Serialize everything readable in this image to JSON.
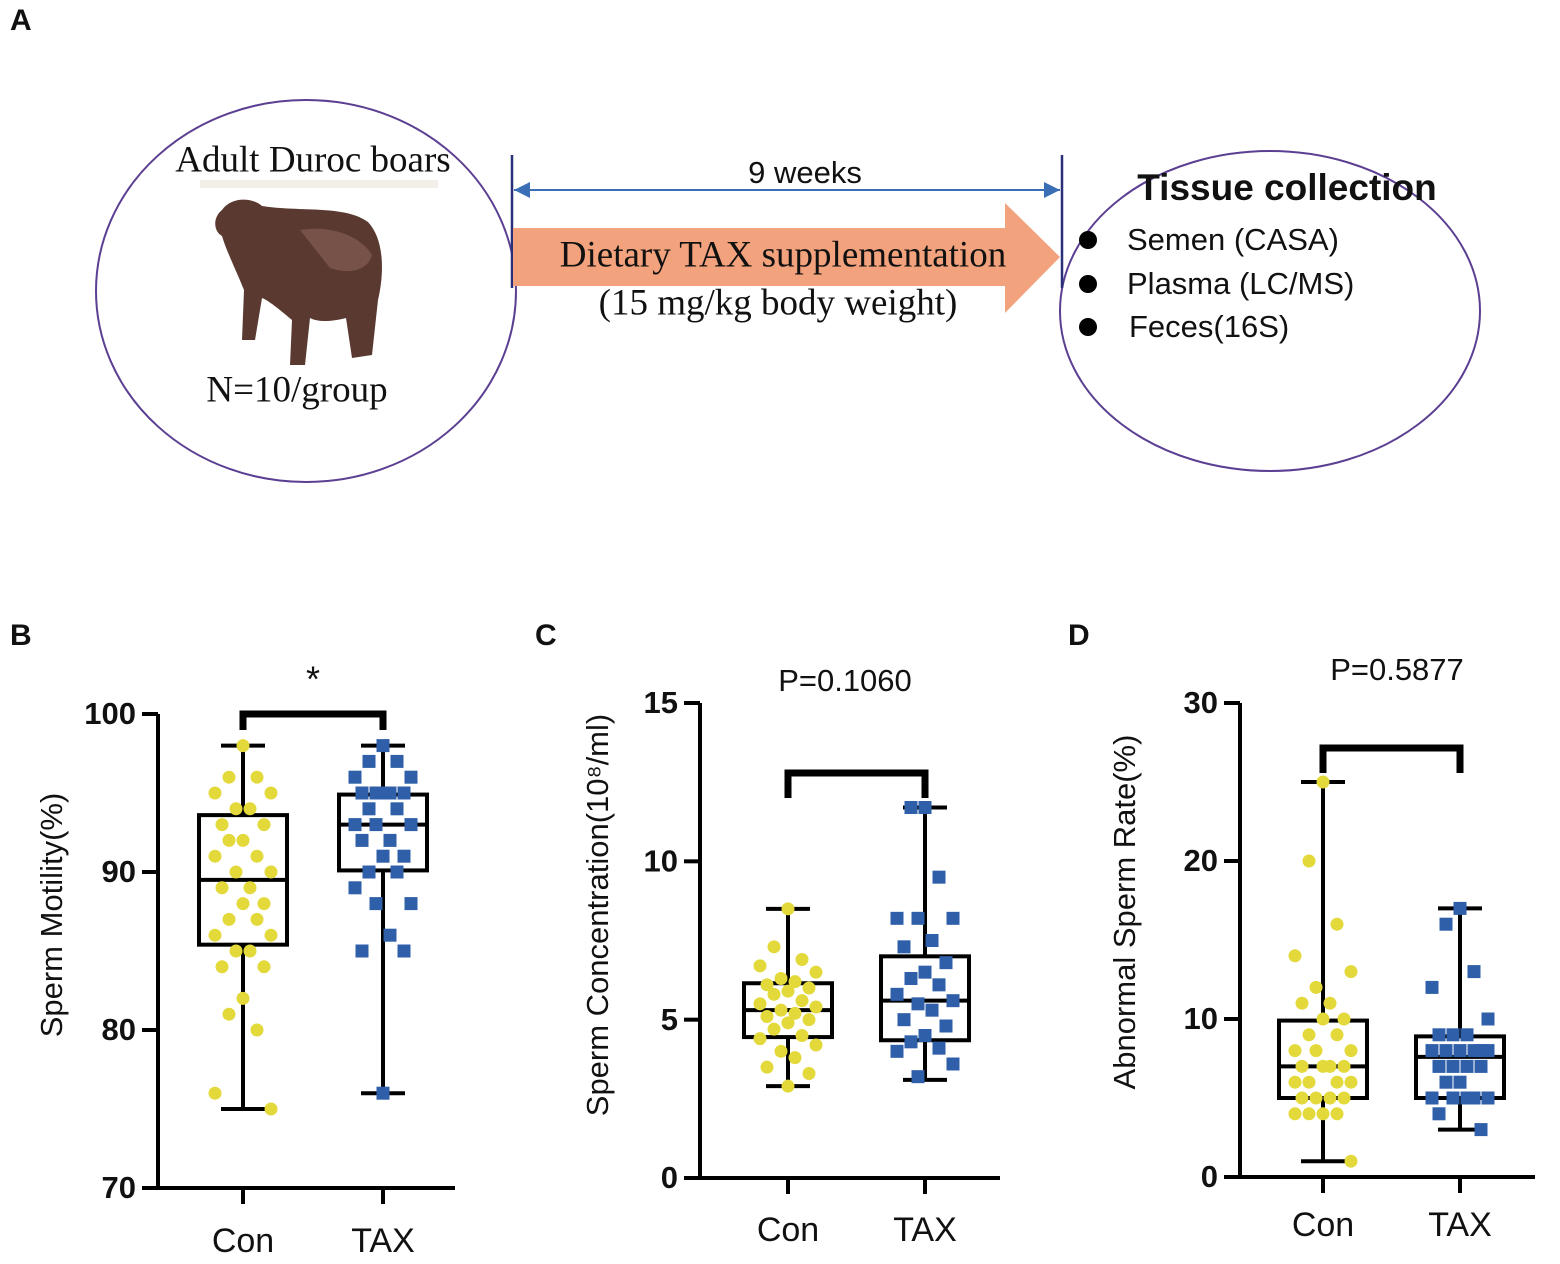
{
  "diagram": {
    "label": "A",
    "left": {
      "title": "Adult Duroc boars",
      "count": "N=10/group"
    },
    "duration": "9 weeks",
    "treatment": "Dietary TAX supplementation",
    "dose": "(15 mg/kg body weight)",
    "right": {
      "title": "Tissue collection",
      "items": [
        "Semen (CASA)",
        "Plasma (LC/MS)",
        "Feces(16S)"
      ]
    }
  },
  "chart_data": [
    {
      "type": "box",
      "label": "B",
      "y_label": "Sperm Motility(%)",
      "annotation": "*",
      "categories": [
        "Con",
        "TAX"
      ],
      "ylim": [
        70,
        100
      ],
      "yticks": [
        70,
        80,
        90,
        100
      ],
      "boxes": [
        {
          "color": "#e3d93b",
          "marker": "circle",
          "min": 75,
          "q1": 85.4,
          "median": 89.5,
          "q3": 93.6,
          "max": 98,
          "points": [
            98,
            96,
            96,
            95,
            95,
            94,
            94,
            93,
            93,
            92,
            92,
            91,
            91,
            90,
            90,
            89,
            89,
            88,
            88,
            87,
            87,
            86,
            86,
            85,
            85,
            84,
            84,
            82,
            81,
            80,
            76,
            75
          ]
        },
        {
          "color": "#2f5fa8",
          "marker": "square",
          "min": 76,
          "q1": 90.1,
          "median": 93,
          "q3": 94.9,
          "max": 98,
          "points": [
            98,
            97,
            97,
            96,
            96,
            95,
            95,
            95,
            95,
            95,
            94,
            94,
            93,
            93,
            93,
            92,
            92,
            91,
            91,
            90,
            90,
            89,
            88,
            88,
            86,
            85,
            85,
            76
          ]
        }
      ]
    },
    {
      "type": "box",
      "label": "C",
      "y_label": "Sperm Concentration(10⁸/ml)",
      "annotation": "P=0.1060",
      "categories": [
        "Con",
        "TAX"
      ],
      "ylim": [
        0,
        15
      ],
      "yticks": [
        0,
        5,
        10,
        15
      ],
      "boxes": [
        {
          "color": "#e3d93b",
          "marker": "circle",
          "min": 2.9,
          "q1": 4.45,
          "median": 5.3,
          "q3": 6.15,
          "max": 8.5,
          "points": [
            8.5,
            7.3,
            6.9,
            6.7,
            6.5,
            6.3,
            6.2,
            6.1,
            6.0,
            5.9,
            5.8,
            5.6,
            5.5,
            5.4,
            5.3,
            5.2,
            5.1,
            5.0,
            4.9,
            4.7,
            4.5,
            4.4,
            4.2,
            4.0,
            3.8,
            3.5,
            3.3,
            2.9
          ]
        },
        {
          "color": "#2f5fa8",
          "marker": "square",
          "min": 3.1,
          "q1": 4.35,
          "median": 5.6,
          "q3": 7.0,
          "max": 11.7,
          "points": [
            11.7,
            11.7,
            9.5,
            8.2,
            8.2,
            8.2,
            7.5,
            7.3,
            6.8,
            6.5,
            6.3,
            6.1,
            5.8,
            5.6,
            5.5,
            5.3,
            5.0,
            4.8,
            4.5,
            4.3,
            4.1,
            4.0,
            3.6,
            3.2
          ]
        }
      ]
    },
    {
      "type": "box",
      "label": "D",
      "y_label": "Abnormal Sperm Rate(%)",
      "annotation": "P=0.5877",
      "categories": [
        "Con",
        "TAX"
      ],
      "ylim": [
        0,
        30
      ],
      "yticks": [
        0,
        10,
        20,
        30
      ],
      "boxes": [
        {
          "color": "#e3d93b",
          "marker": "circle",
          "min": 1,
          "q1": 5,
          "median": 7,
          "q3": 9.9,
          "max": 25,
          "points": [
            25,
            20,
            16,
            14,
            13,
            12,
            11,
            11,
            10,
            10,
            9,
            9,
            8,
            8,
            8,
            7,
            7,
            7,
            7,
            6,
            6,
            6,
            6,
            5,
            5,
            5,
            5,
            4,
            4,
            4,
            4,
            1
          ]
        },
        {
          "color": "#2f5fa8",
          "marker": "square",
          "min": 3,
          "q1": 5,
          "median": 7.6,
          "q3": 8.9,
          "max": 17,
          "points": [
            17,
            16,
            13,
            12,
            10,
            9,
            9,
            9,
            8,
            8,
            8,
            8,
            8,
            8,
            7,
            7,
            7,
            7,
            6,
            6,
            5,
            5,
            5,
            5,
            5,
            4,
            3
          ]
        }
      ]
    }
  ]
}
